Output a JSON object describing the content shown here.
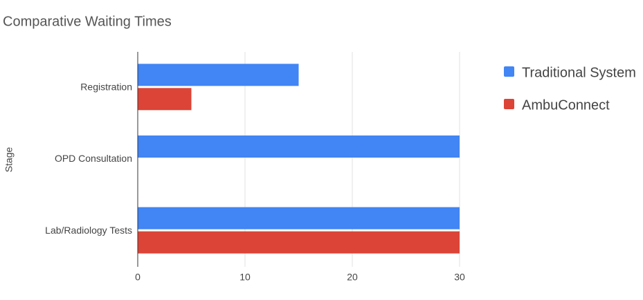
{
  "chart_data": {
    "type": "hbar",
    "title": "Comparative Waiting Times",
    "y_label": "Stage",
    "categories": [
      "Registration",
      "OPD Consultation",
      "Lab/Radiology Tests"
    ],
    "series": [
      {
        "name": "Traditional System",
        "color": "#4285f4",
        "values": [
          15,
          30,
          30
        ]
      },
      {
        "name": "AmbuConnect",
        "color": "#db4437",
        "values": [
          5,
          0,
          30
        ]
      }
    ],
    "xlim": [
      0,
      30
    ],
    "xticks": [
      0,
      10,
      20,
      30
    ],
    "grid": true,
    "legend": "right"
  }
}
